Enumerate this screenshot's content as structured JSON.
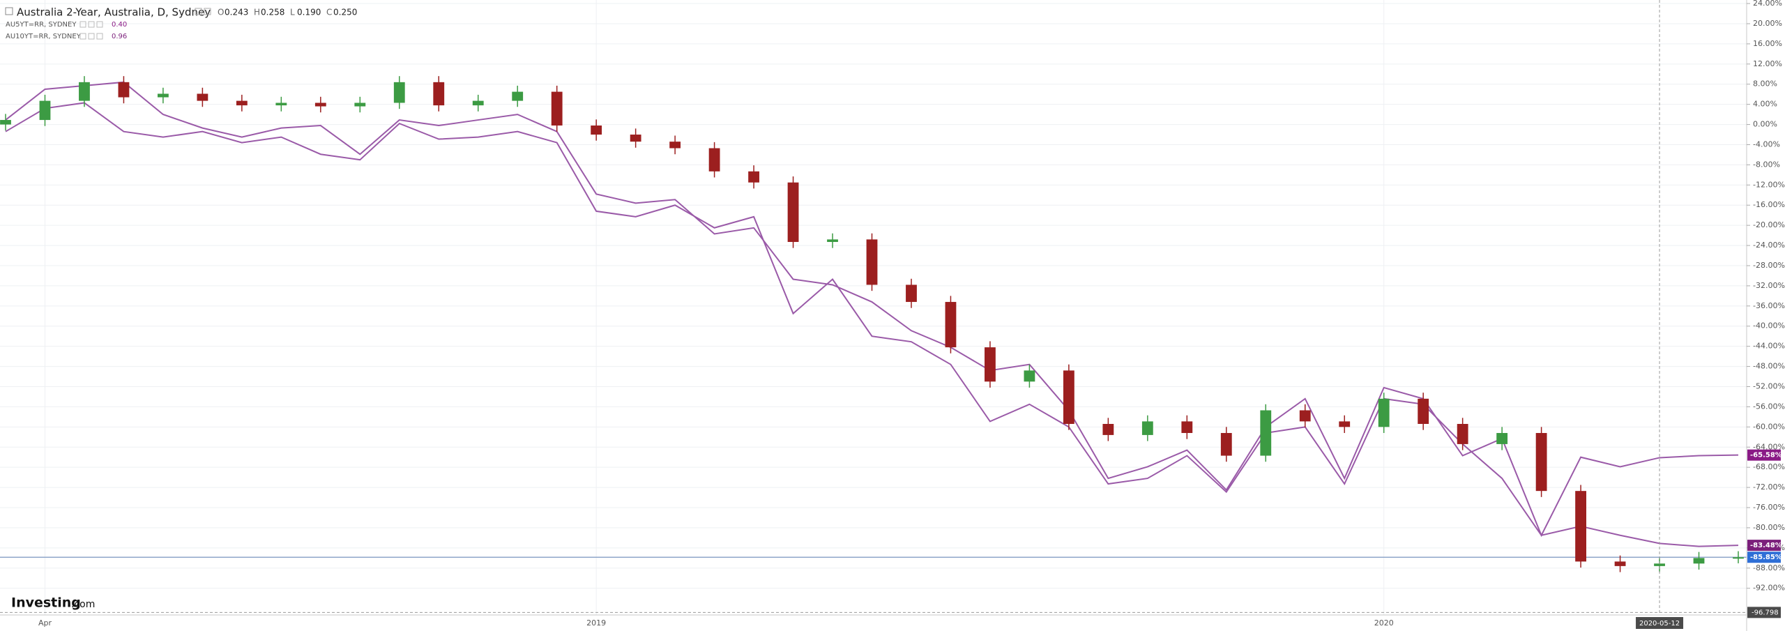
{
  "chart_data": {
    "type": "candlestick",
    "title": "Australia 2-Year, Australia, D, Sydney",
    "ohlc_header": [
      {
        "key": "O",
        "value": "0.243"
      },
      {
        "key": "H",
        "value": "0.258"
      },
      {
        "key": "L",
        "value": "0.190"
      },
      {
        "key": "C",
        "value": "0.250"
      }
    ],
    "logo": {
      "name": "Investing",
      "suffix": ".com"
    },
    "categories": [
      null,
      "Apr",
      null,
      null,
      null,
      null,
      null,
      null,
      null,
      null,
      null,
      null,
      null,
      null,
      null,
      "2019",
      null,
      null,
      null,
      null,
      null,
      null,
      null,
      null,
      null,
      null,
      null,
      null,
      null,
      null,
      null,
      null,
      null,
      null,
      null,
      "2020",
      null,
      null,
      null,
      null,
      null,
      null,
      "2020-05-12",
      null,
      null
    ],
    "crosshair_category": 42,
    "up_color": "#3c9b43",
    "down_color": "#9c1f1f",
    "close_line_color": "#8fa6c9",
    "close_label": "-85.85%",
    "close_label_color": "#2f6fd6",
    "open": [
      0.0,
      0.9,
      4.7,
      8.4,
      5.4,
      6.1,
      4.7,
      3.8,
      4.3,
      3.6,
      4.3,
      8.4,
      3.8,
      4.7,
      6.5,
      -0.2,
      -2.0,
      -3.4,
      -4.7,
      -9.3,
      -11.5,
      -23.3,
      -22.8,
      -31.8,
      -35.2,
      -44.2,
      -51.0,
      -48.8,
      -59.4,
      -61.6,
      -58.9,
      -61.2,
      -65.7,
      -56.7,
      -58.9,
      -60.0,
      -54.4,
      -59.4,
      -63.4,
      -61.2,
      -72.7,
      -86.7,
      -87.6,
      -87.1,
      -86.0
    ],
    "high": [
      2.1,
      5.9,
      9.6,
      9.6,
      7.3,
      7.3,
      5.9,
      5.5,
      5.5,
      5.5,
      9.6,
      9.6,
      5.9,
      7.7,
      7.7,
      1.0,
      -0.8,
      -2.2,
      -3.5,
      -8.1,
      -10.3,
      -21.6,
      -21.6,
      -30.6,
      -34.0,
      -43.0,
      -47.6,
      -47.6,
      -58.2,
      -57.7,
      -57.7,
      -60.0,
      -55.5,
      -55.5,
      -57.7,
      -53.2,
      -53.2,
      -58.2,
      -60.0,
      -60.0,
      -71.5,
      -85.5,
      -85.9,
      -84.8,
      -84.65
    ],
    "low": [
      -1.2,
      -0.3,
      3.5,
      4.2,
      4.2,
      3.5,
      2.6,
      2.6,
      2.4,
      2.4,
      3.1,
      2.6,
      2.6,
      3.5,
      -1.4,
      -3.2,
      -4.6,
      -5.9,
      -10.5,
      -12.7,
      -24.5,
      -24.5,
      -33.0,
      -36.4,
      -45.4,
      -52.2,
      -52.2,
      -60.6,
      -62.8,
      -62.8,
      -62.4,
      -66.9,
      -66.9,
      -60.1,
      -61.2,
      -61.2,
      -60.6,
      -64.6,
      -64.6,
      -73.9,
      -87.9,
      -88.8,
      -88.8,
      -88.3,
      -87.05
    ],
    "close": [
      0.9,
      4.7,
      8.4,
      5.4,
      6.1,
      4.7,
      3.8,
      4.3,
      3.6,
      4.3,
      8.4,
      3.8,
      4.7,
      6.5,
      -0.2,
      -2.0,
      -3.4,
      -4.7,
      -9.3,
      -11.5,
      -23.3,
      -22.8,
      -31.8,
      -35.2,
      -44.2,
      -51.0,
      -48.8,
      -59.4,
      -61.6,
      -58.9,
      -61.2,
      -65.7,
      -56.7,
      -58.9,
      -60.0,
      -54.4,
      -59.4,
      -63.4,
      -61.2,
      -72.7,
      -86.7,
      -87.6,
      -87.1,
      -86.0,
      -85.85
    ],
    "series": [
      {
        "name": "AU5YT=RR, SYDNEY",
        "legend_value": "0.40",
        "color": "#9a5aa8",
        "label_color": "#8a1a86",
        "end_label": "-65.58%",
        "values": [
          0.9,
          7.0,
          7.7,
          8.4,
          2.0,
          -0.7,
          -2.5,
          -0.7,
          -0.2,
          -5.9,
          0.9,
          -0.2,
          0.9,
          2.0,
          -1.4,
          -13.8,
          -15.6,
          -14.9,
          -21.7,
          -20.5,
          -30.7,
          -31.8,
          -35.2,
          -40.9,
          -44.2,
          -48.8,
          -47.6,
          -56.7,
          -70.2,
          -67.9,
          -64.6,
          -72.5,
          -60.0,
          -54.4,
          -70.2,
          -52.2,
          -54.4,
          -65.7,
          -62.3,
          -81.5,
          -66.0,
          -67.9,
          -66.1,
          -65.7,
          -65.58
        ]
      },
      {
        "name": "AU10YT=RR, SYDNEY",
        "legend_value": "0.96",
        "color": "#9a5aa8",
        "label_color": "#7b1f7b",
        "end_label": "-83.48%",
        "values": [
          -1.4,
          3.2,
          4.3,
          -1.4,
          -2.5,
          -1.4,
          -3.6,
          -2.5,
          -5.9,
          -7.0,
          0.2,
          -2.9,
          -2.5,
          -1.4,
          -3.6,
          -17.2,
          -18.3,
          -16.0,
          -20.5,
          -18.3,
          -37.5,
          -30.7,
          -42.0,
          -43.1,
          -47.6,
          -58.9,
          -55.5,
          -60.0,
          -71.3,
          -70.2,
          -65.7,
          -72.9,
          -61.2,
          -60.0,
          -71.3,
          -54.4,
          -55.5,
          -63.4,
          -70.2,
          -81.5,
          -79.7,
          -81.5,
          -83.1,
          -83.7,
          -83.48
        ]
      }
    ],
    "crosshair_y": {
      "value": -96.798,
      "label": "-96.798"
    },
    "ylim": [
      -97.3,
      24.7
    ],
    "yticks": [
      {
        "value": 24,
        "label": "24.00%"
      },
      {
        "value": 20,
        "label": "20.00%"
      },
      {
        "value": 16,
        "label": "16.00%"
      },
      {
        "value": 12,
        "label": "12.00%"
      },
      {
        "value": 8,
        "label": "8.00%"
      },
      {
        "value": 4,
        "label": "4.00%"
      },
      {
        "value": 0,
        "label": "0.00%"
      },
      {
        "value": -4,
        "label": "-4.00%"
      },
      {
        "value": -8,
        "label": "-8.00%"
      },
      {
        "value": -12,
        "label": "-12.00%"
      },
      {
        "value": -16,
        "label": "-16.00%"
      },
      {
        "value": -20,
        "label": "-20.00%"
      },
      {
        "value": -24,
        "label": "-24.00%"
      },
      {
        "value": -28,
        "label": "-28.00%"
      },
      {
        "value": -32,
        "label": "-32.00%"
      },
      {
        "value": -36,
        "label": "-36.00%"
      },
      {
        "value": -40,
        "label": "-40.00%"
      },
      {
        "value": -44,
        "label": "-44.00%"
      },
      {
        "value": -48,
        "label": "-48.00%"
      },
      {
        "value": -52,
        "label": "-52.00%"
      },
      {
        "value": -56,
        "label": "-56.00%"
      },
      {
        "value": -60,
        "label": "-60.00%"
      },
      {
        "value": -64,
        "label": "-64.00%"
      },
      {
        "value": -68,
        "label": "-68.00%"
      },
      {
        "value": -72,
        "label": "-72.00%"
      },
      {
        "value": -76,
        "label": "-76.00%"
      },
      {
        "value": -80,
        "label": "-80.00%"
      },
      {
        "value": -84,
        "label": "-84.00%"
      },
      {
        "value": -88,
        "label": "-88.00%"
      },
      {
        "value": -92,
        "label": "-92.00%"
      }
    ],
    "grid": true
  }
}
